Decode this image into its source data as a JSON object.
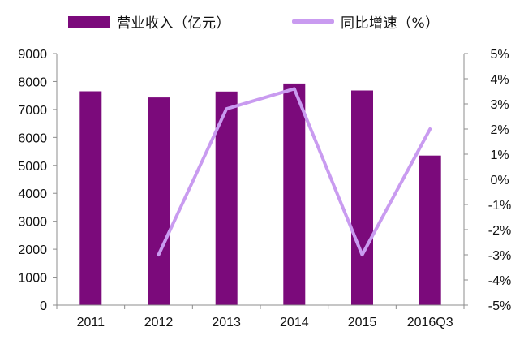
{
  "chart_data": {
    "type": "bar",
    "categories": [
      "2011",
      "2012",
      "2013",
      "2014",
      "2015",
      "2016Q3"
    ],
    "series": [
      {
        "name": "营业收入（亿元）",
        "type": "bar",
        "axis": "left",
        "color": "#7B0A7B",
        "values": [
          7650,
          7430,
          7640,
          7930,
          7680,
          5350
        ]
      },
      {
        "name": "同比增速（%）",
        "type": "line",
        "axis": "right",
        "color": "#C99BF0",
        "values": [
          null,
          -3.0,
          2.8,
          3.6,
          -3.0,
          2.0
        ]
      }
    ],
    "y_left": {
      "ylim": [
        0,
        9000
      ],
      "ticks": [
        "0",
        "1000",
        "2000",
        "3000",
        "4000",
        "5000",
        "6000",
        "7000",
        "8000",
        "9000"
      ]
    },
    "y_right": {
      "ylim": [
        -5,
        5
      ],
      "ticks": [
        "-5%",
        "-4%",
        "-3%",
        "-2%",
        "-1%",
        "0%",
        "1%",
        "2%",
        "3%",
        "4%",
        "5%"
      ]
    },
    "grid": false,
    "legend_position": "top"
  }
}
